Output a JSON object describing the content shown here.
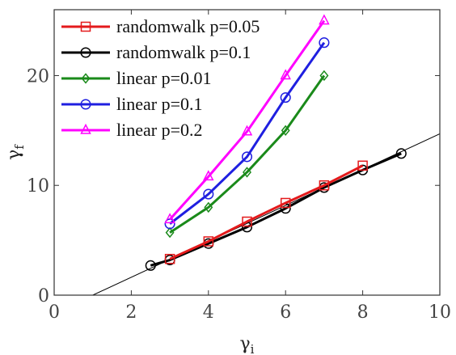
{
  "chart_data": {
    "type": "line",
    "xlabel": "γ",
    "xlabel_subscript": "i",
    "ylabel": "γ",
    "ylabel_subscript": "f",
    "xlim": [
      0,
      10
    ],
    "ylim": [
      0,
      26
    ],
    "x_ticks": [
      0,
      2,
      4,
      6,
      8,
      10
    ],
    "y_ticks": [
      0,
      10,
      20
    ],
    "x_tick_labels": [
      "0",
      "2",
      "4",
      "6",
      "8",
      "10"
    ],
    "y_tick_labels": [
      "0",
      "10",
      "20"
    ],
    "legend_position": "top-left",
    "grid": false,
    "series": [
      {
        "name": "randomwalk  p=0.05",
        "color": "#e41a1c",
        "marker": "square",
        "x": [
          3,
          4,
          5,
          6,
          7,
          8
        ],
        "y": [
          3.3,
          4.9,
          6.7,
          8.4,
          10.0,
          11.8
        ]
      },
      {
        "name": "randomwalk  p=0.1",
        "color": "#000000",
        "marker": "circle",
        "x": [
          2.5,
          3,
          4,
          5,
          6,
          7,
          8,
          9
        ],
        "y": [
          2.7,
          3.2,
          4.7,
          6.2,
          7.9,
          9.8,
          11.4,
          12.9
        ]
      },
      {
        "name": "linear  p=0.01",
        "color": "#1a8a1a",
        "marker": "diamond",
        "x": [
          3,
          4,
          5,
          6,
          7
        ],
        "y": [
          5.7,
          8.0,
          11.2,
          15.0,
          20.0
        ]
      },
      {
        "name": "linear  p=0.1",
        "color": "#1f1fe0",
        "marker": "circle",
        "x": [
          3,
          4,
          5,
          6,
          7
        ],
        "y": [
          6.5,
          9.2,
          12.6,
          18.0,
          23.0
        ]
      },
      {
        "name": "linear  p=0.2",
        "color": "#ff00ff",
        "marker": "triangle",
        "x": [
          3,
          4,
          5,
          6,
          7
        ],
        "y": [
          6.9,
          10.8,
          14.9,
          20.0,
          25.0
        ]
      }
    ],
    "reference_line": {
      "color": "#000000",
      "x": [
        1,
        10
      ],
      "y": [
        0,
        14.7
      ]
    }
  }
}
